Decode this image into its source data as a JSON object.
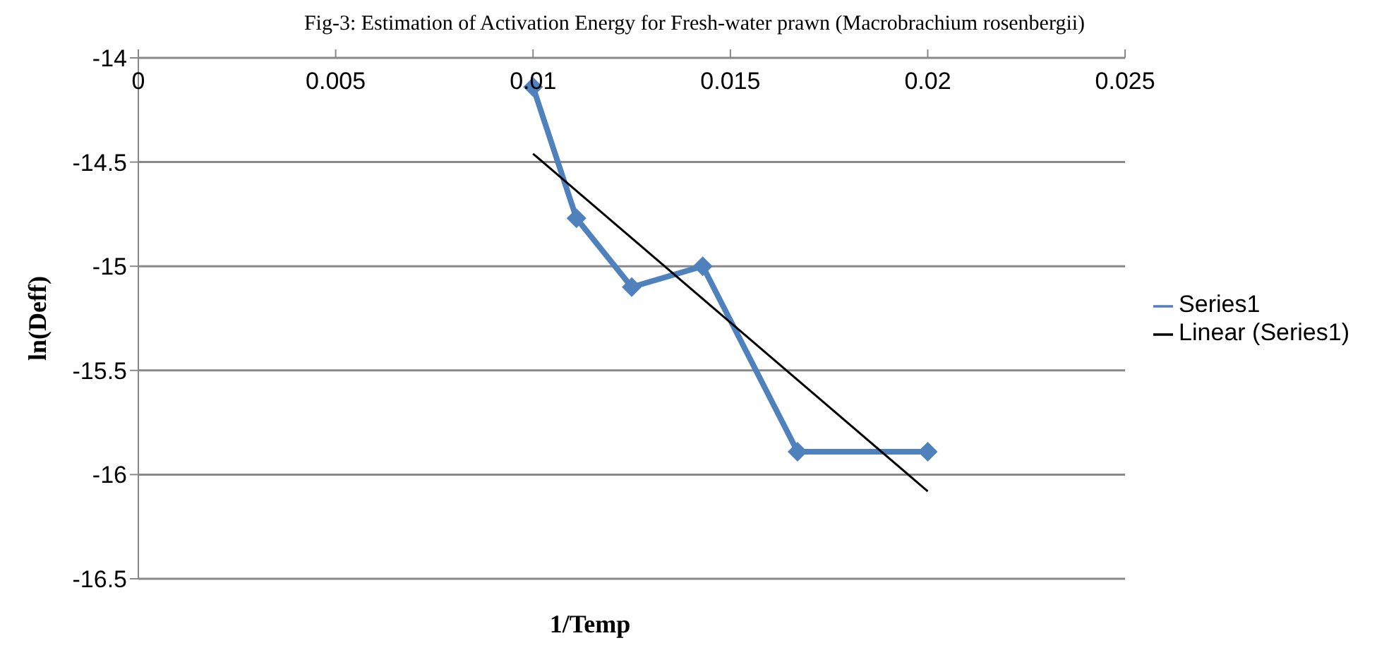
{
  "chart_data": {
    "type": "line",
    "title": "Fig-3: Estimation of Activation Energy for Fresh-water prawn (Macrobrachium rosenbergii)",
    "xlabel": "1/Temp",
    "ylabel": "ln(Deff)",
    "xlim": [
      0,
      0.025
    ],
    "xticks": [
      0,
      0.005,
      0.01,
      0.015,
      0.02,
      0.025
    ],
    "ylim": [
      -16.5,
      -14
    ],
    "yticks": [
      -16.5,
      -16,
      -15.5,
      -15,
      -14.5,
      -14
    ],
    "grid": "y",
    "legend": "right",
    "series": [
      {
        "name": "Series1",
        "color": "#4f81bd",
        "marker": "diamond",
        "line_style": "solid",
        "x": [
          0.01,
          0.0111,
          0.0125,
          0.0143,
          0.0167,
          0.02
        ],
        "values": [
          -14.14,
          -14.77,
          -15.1,
          -15.0,
          -15.89,
          -15.89
        ]
      },
      {
        "name": "Linear (Series1)",
        "color": "#000000",
        "marker": "none",
        "line_style": "solid",
        "x": [
          0.01,
          0.02
        ],
        "values": [
          -14.46,
          -16.08
        ]
      }
    ]
  }
}
